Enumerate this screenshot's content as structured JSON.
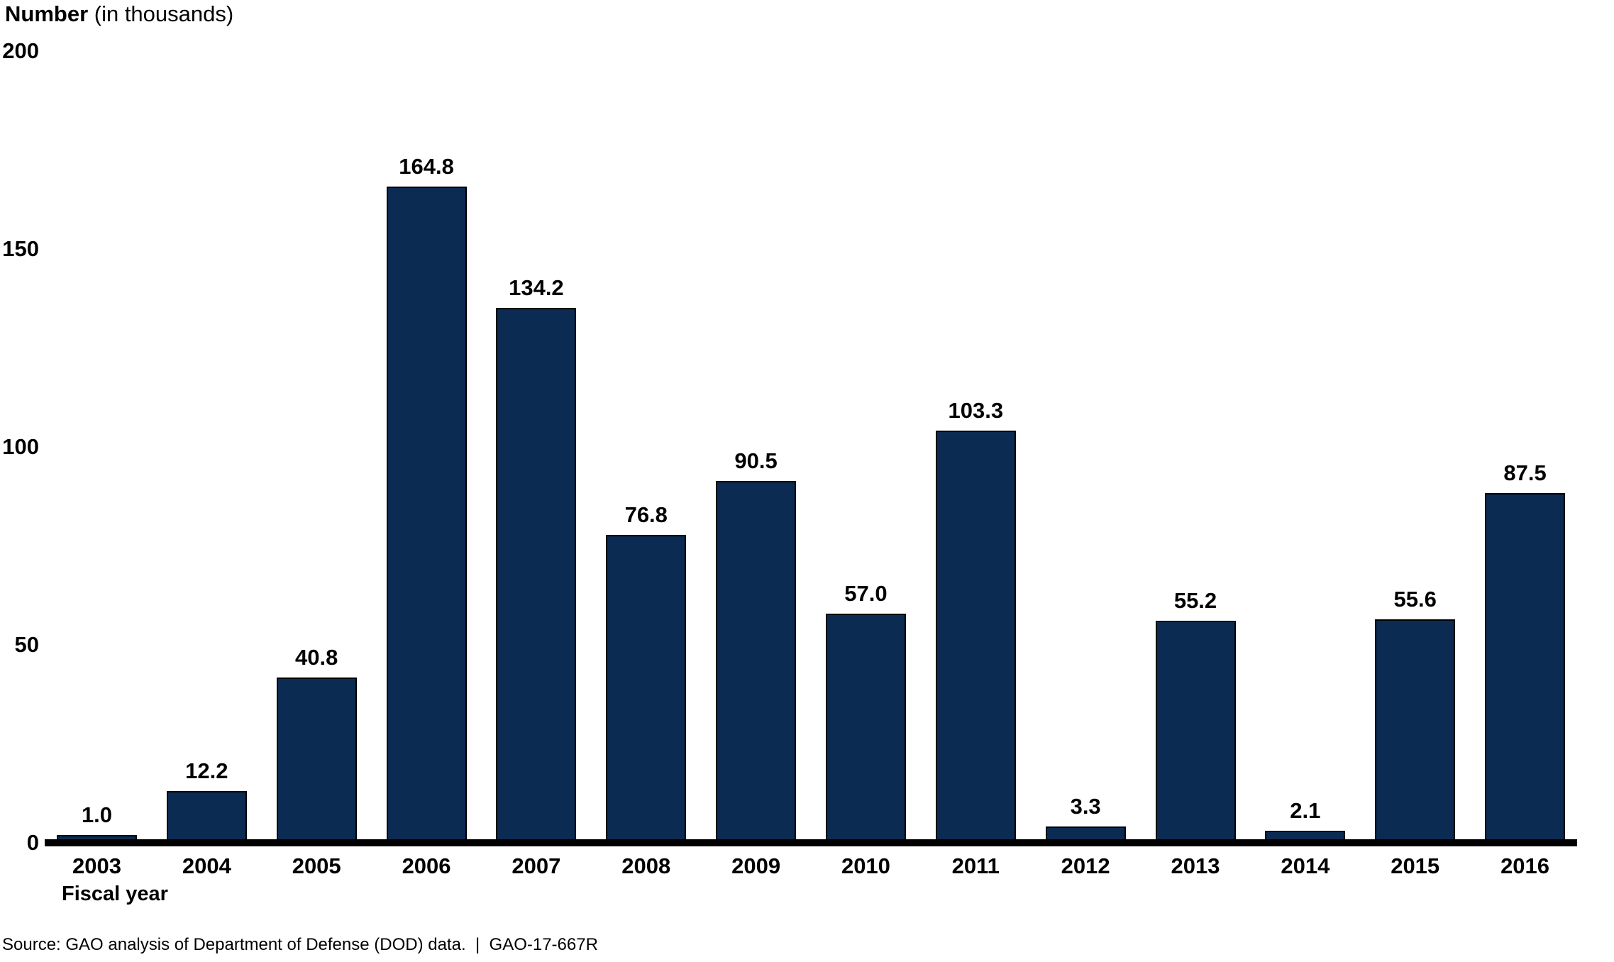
{
  "header": {
    "title_bold": "Number",
    "title_rest": " (in thousands)"
  },
  "footer": {
    "source": "Source: GAO analysis of Department of Defense (DOD) data.  |  GAO-17-667R"
  },
  "colors": {
    "bar_fill": "#0b2b52",
    "bar_border": "#000000",
    "axis": "#000000",
    "text": "#000000",
    "background": "#ffffff"
  },
  "chart_data": {
    "type": "bar",
    "title": "Number (in thousands)",
    "xlabel": "Fiscal year",
    "ylabel": "Number (in thousands)",
    "categories": [
      "2003",
      "2004",
      "2005",
      "2006",
      "2007",
      "2008",
      "2009",
      "2010",
      "2011",
      "2012",
      "2013",
      "2014",
      "2015",
      "2016"
    ],
    "values": [
      1.0,
      12.2,
      40.8,
      164.8,
      134.2,
      76.8,
      90.5,
      57.0,
      103.3,
      3.3,
      55.2,
      2.1,
      55.6,
      87.5
    ],
    "value_labels": [
      "1.0",
      "12.2",
      "40.8",
      "164.8",
      "134.2",
      "76.8",
      "90.5",
      "57.0",
      "103.3",
      "3.3",
      "55.2",
      "2.1",
      "55.6",
      "87.5"
    ],
    "ylim": [
      0,
      200
    ],
    "yticks": [
      0,
      50,
      100,
      150,
      200
    ],
    "grid": false,
    "legend": false,
    "data_labels_position": "above-bars"
  }
}
